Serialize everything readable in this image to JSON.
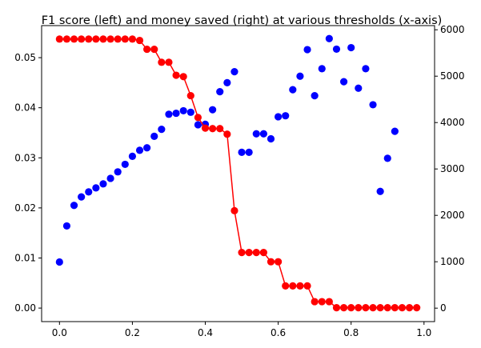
{
  "chart_data": {
    "type": "scatter",
    "title": "F1 score (left) and money saved (right) at various thresholds (x-axis)",
    "xlabel": "",
    "ylabel": "",
    "y2label": "",
    "xlim": [
      -0.049,
      1.029
    ],
    "ylim": [
      -0.0027,
      0.0564
    ],
    "y2lim": [
      -290,
      6090
    ],
    "xticks": [
      0.0,
      0.2,
      0.4,
      0.6,
      0.8,
      1.0
    ],
    "xtick_labels": [
      "0.0",
      "0.2",
      "0.4",
      "0.6",
      "0.8",
      "1.0"
    ],
    "yticks": [
      0.0,
      0.01,
      0.02,
      0.03,
      0.04,
      0.05
    ],
    "ytick_labels": [
      "0.00",
      "0.01",
      "0.02",
      "0.03",
      "0.04",
      "0.05"
    ],
    "y2ticks": [
      0,
      1000,
      2000,
      3000,
      4000,
      5000,
      6000
    ],
    "y2tick_labels": [
      "0",
      "1000",
      "2000",
      "3000",
      "4000",
      "5000",
      "6000"
    ],
    "grid": false,
    "series": [
      {
        "axis": "left",
        "color": "#0000ff",
        "style": "markers",
        "x": [
          0.0,
          0.02,
          0.04,
          0.06,
          0.08,
          0.1,
          0.12,
          0.14,
          0.16,
          0.18,
          0.2,
          0.22,
          0.24,
          0.26,
          0.28,
          0.3,
          0.32,
          0.34,
          0.36,
          0.38,
          0.4,
          0.42,
          0.44,
          0.46,
          0.48,
          0.5,
          0.52,
          0.54,
          0.56,
          0.58,
          0.6,
          0.62,
          0.64,
          0.66,
          0.68,
          0.7,
          0.72,
          0.74,
          0.76,
          0.78,
          0.8,
          0.82,
          0.84,
          0.86,
          0.88,
          0.9,
          0.92
        ],
        "y": [
          0.0092,
          0.0164,
          0.0205,
          0.0222,
          0.0232,
          0.024,
          0.0248,
          0.0259,
          0.0272,
          0.0287,
          0.0303,
          0.0315,
          0.032,
          0.0343,
          0.0357,
          0.0387,
          0.0389,
          0.0394,
          0.0391,
          0.0366,
          0.0367,
          0.0396,
          0.0432,
          0.045,
          0.0472,
          0.0311,
          0.0311,
          0.0348,
          0.0348,
          0.0338,
          0.0382,
          0.0384,
          0.0436,
          0.0463,
          0.0516,
          0.0424,
          0.0478,
          0.0538,
          0.0517,
          0.0452,
          0.052,
          0.0439,
          0.0478,
          0.0406,
          0.0233,
          0.0299,
          0.0353
        ]
      },
      {
        "axis": "right",
        "color": "#ff0000",
        "style": "line+markers",
        "x": [
          0.0,
          0.02,
          0.04,
          0.06,
          0.08,
          0.1,
          0.12,
          0.14,
          0.16,
          0.18,
          0.2,
          0.22,
          0.24,
          0.26,
          0.28,
          0.3,
          0.32,
          0.34,
          0.36,
          0.38,
          0.4,
          0.42,
          0.44,
          0.46,
          0.48,
          0.5,
          0.52,
          0.54,
          0.56,
          0.58,
          0.6,
          0.62,
          0.64,
          0.66,
          0.68,
          0.7,
          0.72,
          0.74,
          0.76,
          0.78,
          0.8,
          0.82,
          0.84,
          0.86,
          0.88,
          0.9,
          0.92,
          0.94,
          0.96,
          0.98
        ],
        "y": [
          5800,
          5800,
          5800,
          5800,
          5800,
          5800,
          5800,
          5800,
          5800,
          5800,
          5800,
          5770,
          5580,
          5580,
          5300,
          5300,
          5020,
          4990,
          4580,
          4110,
          3880,
          3870,
          3870,
          3750,
          2100,
          1200,
          1200,
          1200,
          1200,
          1000,
          1000,
          480,
          480,
          480,
          480,
          140,
          140,
          140,
          10,
          10,
          10,
          10,
          10,
          10,
          10,
          10,
          10,
          10,
          10,
          10
        ]
      }
    ]
  }
}
